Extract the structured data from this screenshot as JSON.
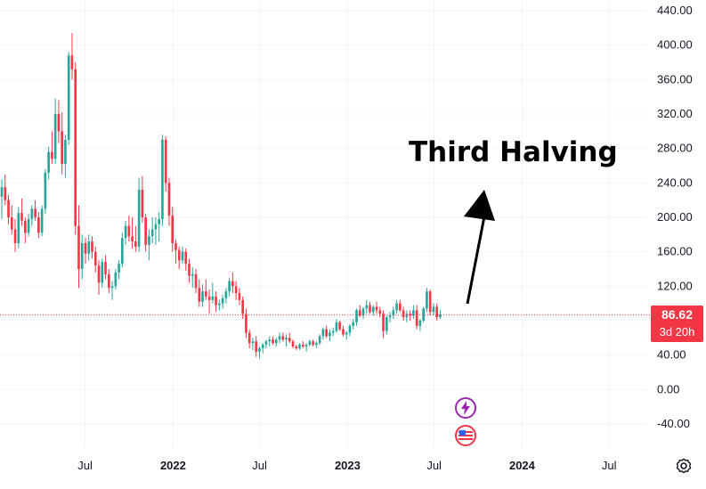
{
  "annotation": {
    "text": "Third Halving"
  },
  "price_tag": {
    "price": "86.62",
    "countdown": "3d 20h"
  },
  "colors": {
    "up": "#26a69a",
    "down": "#f23645",
    "grid": "#f0f3fa",
    "price_line": "#f23645",
    "event_lightning": "#9c27b0",
    "arrow": "#000000"
  },
  "icons": {
    "settings": "gear-icon",
    "event_1": "lightning-icon",
    "event_2": "us-flag-icon"
  },
  "chart_data": {
    "type": "candlestick",
    "title": "",
    "xlabel": "",
    "ylabel": "",
    "ylim": [
      -60,
      450
    ],
    "y_ticks": [
      "440.00",
      "400.00",
      "360.00",
      "320.00",
      "280.00",
      "240.00",
      "200.00",
      "160.00",
      "120.00",
      "80.00",
      "40.00",
      "0.00",
      "-40.00"
    ],
    "y_tick_values": [
      440,
      400,
      360,
      320,
      280,
      240,
      200,
      160,
      120,
      80,
      40,
      0,
      -40
    ],
    "x_ticks": [
      "Jul",
      "2022",
      "Jul",
      "2023",
      "Jul",
      "2024",
      "Jul"
    ],
    "x_tick_years": [
      false,
      true,
      false,
      true,
      false,
      true,
      false
    ],
    "x_tick_dates": [
      "2021-07-01",
      "2022-01-01",
      "2022-07-01",
      "2023-01-01",
      "2023-07-01",
      "2024-01-01",
      "2024-07-01"
    ],
    "x_range": [
      "2021-01-04",
      "2024-09-15"
    ],
    "grid": true,
    "last_price": 86.62,
    "candle_interval": "1W",
    "candles_start": "2021-01-04",
    "candles_ohlc": [
      [
        224,
        244,
        198,
        235
      ],
      [
        235,
        250,
        214,
        220
      ],
      [
        220,
        226,
        192,
        200
      ],
      [
        200,
        214,
        180,
        186
      ],
      [
        186,
        198,
        160,
        170
      ],
      [
        170,
        212,
        164,
        205
      ],
      [
        205,
        222,
        190,
        196
      ],
      [
        196,
        200,
        170,
        182
      ],
      [
        182,
        204,
        178,
        198
      ],
      [
        198,
        214,
        190,
        210
      ],
      [
        210,
        220,
        196,
        200
      ],
      [
        200,
        206,
        176,
        182
      ],
      [
        182,
        214,
        178,
        210
      ],
      [
        210,
        256,
        204,
        252
      ],
      [
        252,
        282,
        244,
        276
      ],
      [
        276,
        300,
        262,
        268
      ],
      [
        268,
        338,
        262,
        320
      ],
      [
        320,
        336,
        286,
        300
      ],
      [
        300,
        322,
        250,
        262
      ],
      [
        262,
        296,
        246,
        290
      ],
      [
        290,
        392,
        284,
        388
      ],
      [
        388,
        414,
        360,
        372
      ],
      [
        372,
        380,
        180,
        190
      ],
      [
        190,
        214,
        118,
        140
      ],
      [
        140,
        180,
        128,
        170
      ],
      [
        170,
        176,
        146,
        158
      ],
      [
        158,
        180,
        150,
        172
      ],
      [
        172,
        178,
        152,
        160
      ],
      [
        160,
        166,
        136,
        144
      ],
      [
        144,
        150,
        110,
        124
      ],
      [
        124,
        152,
        118,
        148
      ],
      [
        148,
        156,
        128,
        134
      ],
      [
        134,
        140,
        112,
        118
      ],
      [
        118,
        126,
        104,
        120
      ],
      [
        120,
        140,
        116,
        136
      ],
      [
        136,
        150,
        128,
        146
      ],
      [
        146,
        182,
        142,
        176
      ],
      [
        176,
        196,
        168,
        190
      ],
      [
        190,
        202,
        172,
        178
      ],
      [
        178,
        200,
        164,
        172
      ],
      [
        172,
        190,
        160,
        166
      ],
      [
        166,
        246,
        160,
        232
      ],
      [
        232,
        248,
        194,
        200
      ],
      [
        200,
        204,
        160,
        168
      ],
      [
        168,
        186,
        150,
        178
      ],
      [
        178,
        200,
        170,
        186
      ],
      [
        186,
        200,
        168,
        192
      ],
      [
        192,
        206,
        172,
        198
      ],
      [
        198,
        296,
        190,
        290
      ],
      [
        290,
        294,
        230,
        240
      ],
      [
        240,
        246,
        190,
        202
      ],
      [
        202,
        212,
        160,
        170
      ],
      [
        170,
        174,
        146,
        162
      ],
      [
        162,
        166,
        140,
        150
      ],
      [
        150,
        166,
        146,
        160
      ],
      [
        160,
        164,
        138,
        146
      ],
      [
        146,
        152,
        124,
        132
      ],
      [
        132,
        142,
        118,
        134
      ],
      [
        134,
        140,
        112,
        118
      ],
      [
        118,
        128,
        96,
        102
      ],
      [
        102,
        122,
        96,
        114
      ],
      [
        114,
        128,
        104,
        108
      ],
      [
        108,
        116,
        88,
        104
      ],
      [
        104,
        124,
        100,
        108
      ],
      [
        108,
        114,
        90,
        98
      ],
      [
        98,
        104,
        92,
        100
      ],
      [
        100,
        110,
        94,
        106
      ],
      [
        106,
        118,
        100,
        114
      ],
      [
        114,
        130,
        108,
        126
      ],
      [
        126,
        136,
        112,
        120
      ],
      [
        120,
        126,
        104,
        112
      ],
      [
        112,
        118,
        98,
        104
      ],
      [
        104,
        108,
        82,
        88
      ],
      [
        88,
        94,
        60,
        66
      ],
      [
        66,
        70,
        48,
        54
      ],
      [
        54,
        60,
        46,
        56
      ],
      [
        56,
        62,
        38,
        44
      ],
      [
        44,
        50,
        36,
        48
      ],
      [
        48,
        54,
        42,
        52
      ],
      [
        52,
        58,
        48,
        56
      ],
      [
        56,
        62,
        50,
        58
      ],
      [
        58,
        62,
        52,
        54
      ],
      [
        54,
        60,
        50,
        58
      ],
      [
        58,
        66,
        54,
        62
      ],
      [
        62,
        66,
        56,
        58
      ],
      [
        58,
        64,
        50,
        60
      ],
      [
        60,
        66,
        54,
        56
      ],
      [
        56,
        58,
        48,
        50
      ],
      [
        50,
        52,
        46,
        48
      ],
      [
        48,
        54,
        46,
        52
      ],
      [
        52,
        56,
        48,
        50
      ],
      [
        50,
        54,
        44,
        52
      ],
      [
        52,
        58,
        50,
        56
      ],
      [
        56,
        58,
        50,
        52
      ],
      [
        52,
        56,
        48,
        54
      ],
      [
        54,
        64,
        52,
        62
      ],
      [
        62,
        72,
        58,
        70
      ],
      [
        70,
        74,
        60,
        62
      ],
      [
        62,
        70,
        56,
        66
      ],
      [
        66,
        72,
        62,
        68
      ],
      [
        68,
        82,
        66,
        78
      ],
      [
        78,
        80,
        68,
        70
      ],
      [
        70,
        74,
        62,
        64
      ],
      [
        64,
        68,
        58,
        66
      ],
      [
        66,
        76,
        62,
        74
      ],
      [
        74,
        82,
        70,
        78
      ],
      [
        78,
        94,
        74,
        92
      ],
      [
        92,
        98,
        84,
        86
      ],
      [
        86,
        96,
        82,
        94
      ],
      [
        94,
        104,
        88,
        98
      ],
      [
        98,
        102,
        88,
        90
      ],
      [
        90,
        98,
        86,
        96
      ],
      [
        96,
        102,
        88,
        92
      ],
      [
        92,
        96,
        84,
        88
      ],
      [
        88,
        92,
        60,
        68
      ],
      [
        68,
        86,
        64,
        84
      ],
      [
        84,
        90,
        78,
        86
      ],
      [
        86,
        96,
        82,
        92
      ],
      [
        92,
        104,
        88,
        100
      ],
      [
        100,
        104,
        90,
        92
      ],
      [
        92,
        96,
        80,
        84
      ],
      [
        84,
        92,
        78,
        88
      ],
      [
        88,
        92,
        80,
        86
      ],
      [
        86,
        98,
        82,
        92
      ],
      [
        92,
        98,
        70,
        74
      ],
      [
        74,
        82,
        68,
        80
      ],
      [
        80,
        96,
        78,
        94
      ],
      [
        94,
        118,
        90,
        114
      ],
      [
        114,
        116,
        86,
        90
      ],
      [
        90,
        100,
        86,
        96
      ],
      [
        96,
        100,
        80,
        84
      ],
      [
        84,
        92,
        82,
        87
      ]
    ]
  }
}
